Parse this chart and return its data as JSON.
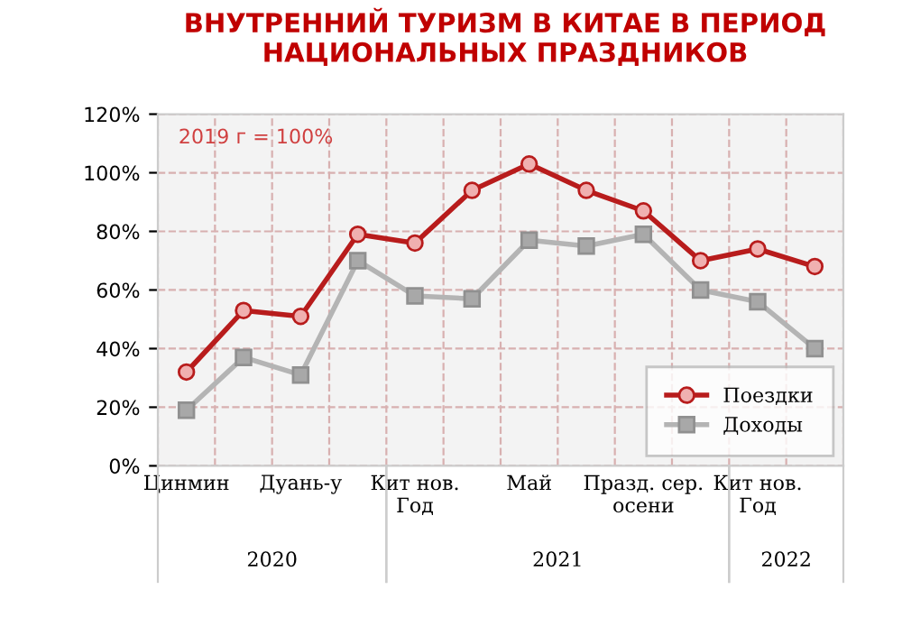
{
  "chart_data": {
    "type": "line",
    "title": "ВНУТРЕННИЙ ТУРИЗМ В КИТАЕ В ПЕРИОД\nНАЦИОНАЛЬНЫХ ПРАЗДНИКОВ",
    "categories": [
      "Цинмин",
      null,
      "Дуань-у",
      null,
      "Кит нов.\nГод",
      null,
      "Май",
      null,
      "Празд. сер.\nосени",
      null,
      "Кит нов.\nГод",
      null
    ],
    "series": [
      {
        "name": "Поездки",
        "color": "#b81c1c",
        "marker": "circle",
        "values": [
          32,
          53,
          51,
          79,
          76,
          94,
          103,
          94,
          87,
          70,
          74,
          68
        ]
      },
      {
        "name": "Доходы",
        "color": "#b4b4b4",
        "marker": "square",
        "values": [
          19,
          37,
          31,
          70,
          58,
          57,
          77,
          75,
          79,
          60,
          56,
          40
        ]
      }
    ],
    "ylim": [
      0,
      120
    ],
    "yticks": [
      {
        "value": 0,
        "label": "0%"
      },
      {
        "value": 20,
        "label": "20%"
      },
      {
        "value": 40,
        "label": "40%"
      },
      {
        "value": 60,
        "label": "60%"
      },
      {
        "value": 80,
        "label": "80%"
      },
      {
        "value": 100,
        "label": "100%"
      },
      {
        "value": 120,
        "label": "120%"
      }
    ],
    "annotations": [
      "2019 г = 100%",
      "2020",
      "2021",
      "2022"
    ],
    "grid": true,
    "legend": "bottom right",
    "line_style": "solid"
  }
}
